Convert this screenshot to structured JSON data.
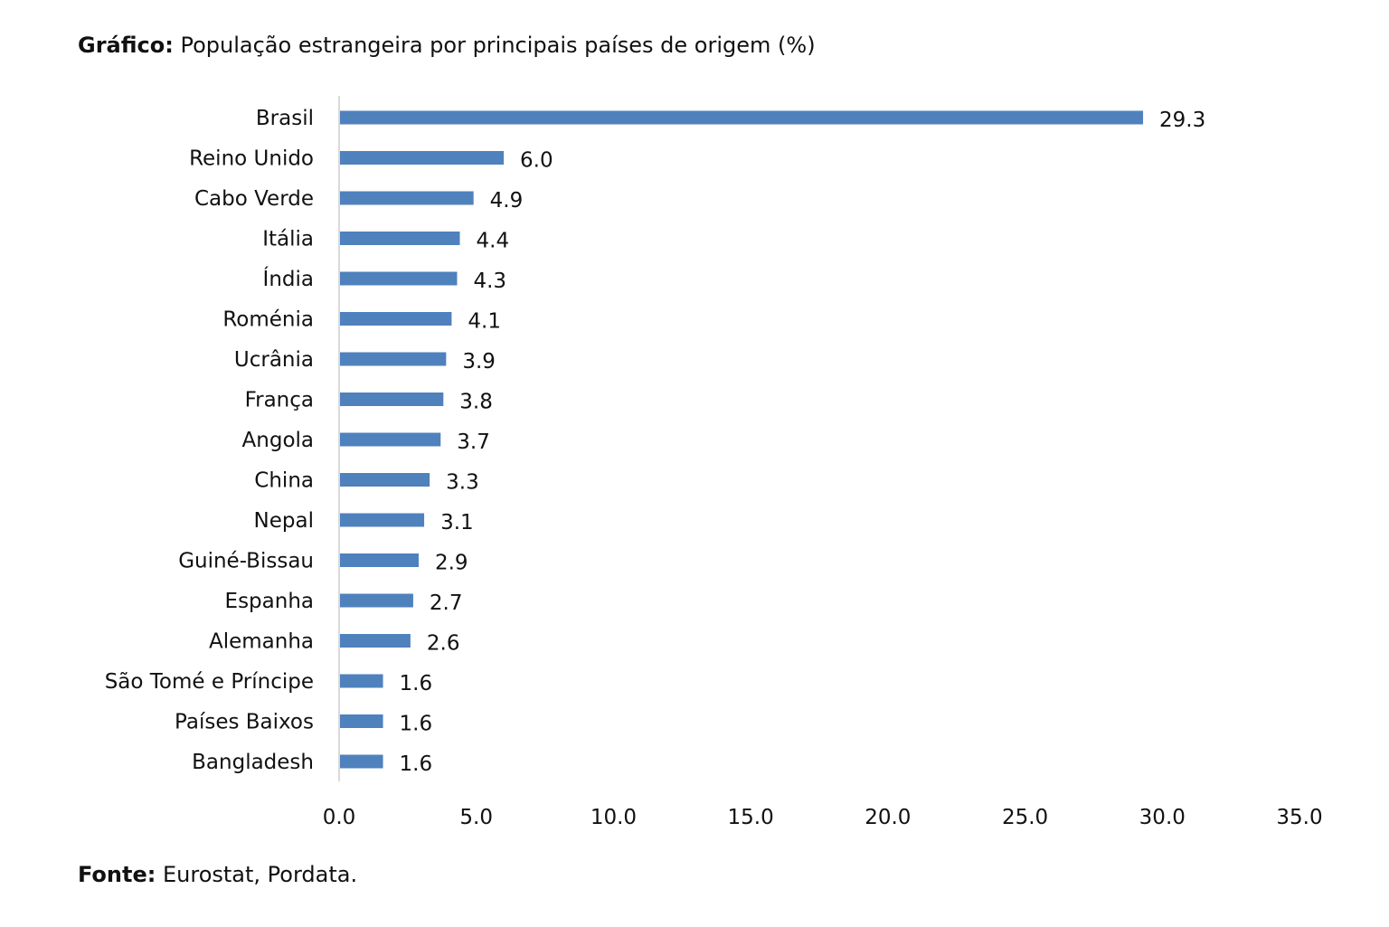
{
  "header": {
    "title_prefix": "Gráfico:",
    "title_text": "População estrangeira por principais países de origem (%)"
  },
  "footer": {
    "source_prefix": "Fonte:",
    "source_text": "Eurostat, Pordata."
  },
  "chart_data": {
    "type": "bar",
    "orientation": "horizontal",
    "categories": [
      "Brasil",
      "Reino Unido",
      "Cabo Verde",
      "Itália",
      "Índia",
      "Roménia",
      "Ucrânia",
      "França",
      "Angola",
      "China",
      "Nepal",
      "Guiné-Bissau",
      "Espanha",
      "Alemanha",
      "São Tomé e Príncipe",
      "Países Baixos",
      "Bangladesh"
    ],
    "values": [
      29.3,
      6.0,
      4.9,
      4.4,
      4.3,
      4.1,
      3.9,
      3.8,
      3.7,
      3.3,
      3.1,
      2.9,
      2.7,
      2.6,
      1.6,
      1.6,
      1.6
    ],
    "value_labels": [
      "29.3",
      "6.0",
      "4.9",
      "4.4",
      "4.3",
      "4.1",
      "3.9",
      "3.8",
      "3.7",
      "3.3",
      "3.1",
      "2.9",
      "2.7",
      "2.6",
      "1.6",
      "1.6",
      "1.6"
    ],
    "xlim": [
      0,
      35
    ],
    "xticks": [
      "0.0",
      "5.0",
      "10.0",
      "15.0",
      "20.0",
      "25.0",
      "30.0",
      "35.0"
    ],
    "title": "População estrangeira por principais países de origem (%)",
    "xlabel": "",
    "ylabel": "",
    "grid": false,
    "legend": false,
    "colors": {
      "bar": "#4f81bd",
      "axis": "#d9d9d9",
      "text": "#111111"
    }
  }
}
